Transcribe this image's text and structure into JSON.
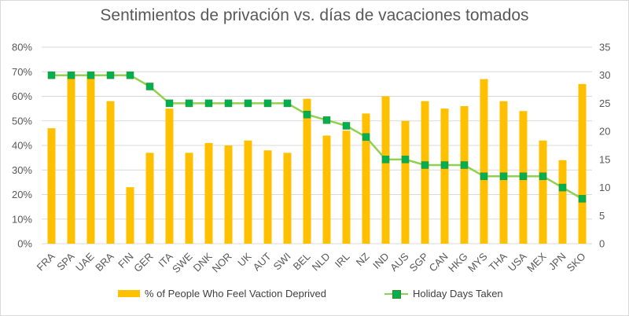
{
  "chart_data": {
    "type": "bar",
    "title": "Sentimientos de privación vs. días de vacaciones tomados",
    "categories": [
      "FRA",
      "SPA",
      "UAE",
      "BRA",
      "FIN",
      "GER",
      "ITA",
      "SWE",
      "DNK",
      "NOR",
      "UK",
      "AUT",
      "SWI",
      "BEL",
      "NLD",
      "IRL",
      "NZ",
      "IND",
      "AUS",
      "SGP",
      "CAN",
      "HKG",
      "MYS",
      "THA",
      "USA",
      "MEX",
      "JPN",
      "SKO"
    ],
    "series": [
      {
        "name": "% of People Who Feel Vaction Deprived",
        "type": "bar",
        "axis": "left",
        "color": "#ffc000",
        "values": [
          47,
          69,
          69,
          58,
          23,
          37,
          55,
          37,
          41,
          40,
          42,
          38,
          37,
          59,
          44,
          46,
          53,
          60,
          50,
          58,
          55,
          56,
          67,
          58,
          54,
          42,
          34,
          65
        ]
      },
      {
        "name": "Holiday Days Taken",
        "type": "line",
        "axis": "right",
        "color": "#92d050",
        "marker_color": "#00b050",
        "values": [
          30,
          30,
          30,
          30,
          30,
          28,
          25,
          25,
          25,
          25,
          25,
          25,
          25,
          23,
          22,
          21,
          19,
          15,
          15,
          14,
          14,
          14,
          12,
          12,
          12,
          12,
          10,
          8
        ]
      }
    ],
    "y_left": {
      "min": 0,
      "max": 80,
      "step": 10,
      "ticks": [
        "0%",
        "10%",
        "20%",
        "30%",
        "40%",
        "50%",
        "60%",
        "70%",
        "80%"
      ]
    },
    "y_right": {
      "min": 0,
      "max": 35,
      "step": 5,
      "ticks": [
        "0",
        "5",
        "10",
        "15",
        "20",
        "25",
        "30",
        "35"
      ]
    },
    "grid": true,
    "legend_position": "bottom"
  }
}
